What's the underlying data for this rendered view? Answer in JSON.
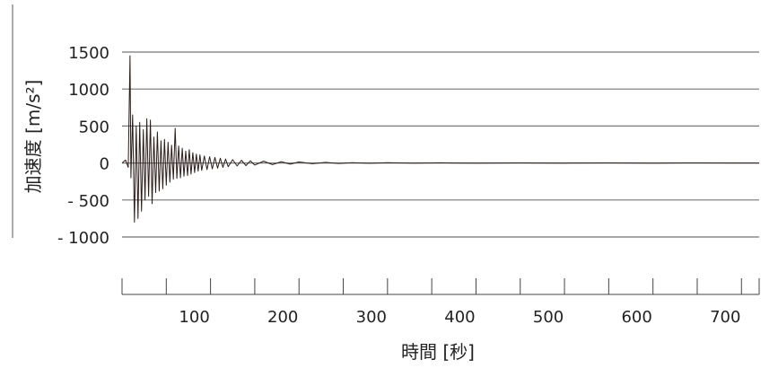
{
  "chart_data": {
    "type": "line",
    "ylabel": "加速度 [m/s²]",
    "xlabel": "時間 [秒]",
    "xlim": [
      0,
      720
    ],
    "ylim": [
      -1000,
      1500
    ],
    "grid": true,
    "y_ticks": [
      {
        "value": 1500,
        "label": "1500"
      },
      {
        "value": 1000,
        "label": "1000"
      },
      {
        "value": 500,
        "label": "500"
      },
      {
        "value": 0,
        "label": "0"
      },
      {
        "value": -500,
        "label": "- 500"
      },
      {
        "value": -1000,
        "label": "- 1000"
      }
    ],
    "x_ticks": [
      {
        "value": 100,
        "label": "100"
      },
      {
        "value": 200,
        "label": "200"
      },
      {
        "value": 300,
        "label": "300"
      },
      {
        "value": 400,
        "label": "400"
      },
      {
        "value": 500,
        "label": "500"
      },
      {
        "value": 600,
        "label": "600"
      },
      {
        "value": 700,
        "label": "700"
      }
    ],
    "x_minor_ticks": [
      0,
      50,
      100,
      150,
      200,
      250,
      300,
      350,
      400,
      450,
      500,
      550,
      600,
      650,
      700
    ],
    "series": [
      {
        "color": "#2a1d1a",
        "x": [
          0,
          4,
          7,
          9,
          10,
          12,
          14,
          16,
          18,
          20,
          22,
          24,
          26,
          28,
          30,
          32,
          34,
          36,
          38,
          40,
          42,
          44,
          46,
          48,
          50,
          52,
          54,
          56,
          58,
          60,
          62,
          64,
          66,
          68,
          70,
          72,
          74,
          76,
          78,
          80,
          82,
          84,
          86,
          88,
          90,
          93,
          96,
          99,
          102,
          105,
          108,
          111,
          114,
          117,
          120,
          125,
          130,
          135,
          140,
          145,
          150,
          160,
          170,
          180,
          190,
          200,
          215,
          230,
          245,
          260,
          280,
          300,
          330,
          360,
          400,
          450,
          500,
          550,
          600,
          650,
          700,
          720
        ],
        "y": [
          0,
          40,
          -60,
          1450,
          -200,
          650,
          -800,
          500,
          -750,
          550,
          -650,
          450,
          -500,
          600,
          -450,
          580,
          -550,
          350,
          -400,
          420,
          -380,
          300,
          -350,
          320,
          -300,
          280,
          -260,
          240,
          -220,
          470,
          -210,
          230,
          -200,
          200,
          -180,
          160,
          -170,
          180,
          -150,
          140,
          -130,
          120,
          -110,
          110,
          -100,
          95,
          -90,
          85,
          -80,
          75,
          -70,
          65,
          -60,
          55,
          -50,
          45,
          -40,
          38,
          -35,
          30,
          -28,
          25,
          -22,
          18,
          -16,
          14,
          -10,
          8,
          -6,
          5,
          -4,
          4,
          -3,
          2,
          -2,
          1,
          -1,
          1,
          -1,
          1,
          0,
          0
        ]
      }
    ]
  }
}
